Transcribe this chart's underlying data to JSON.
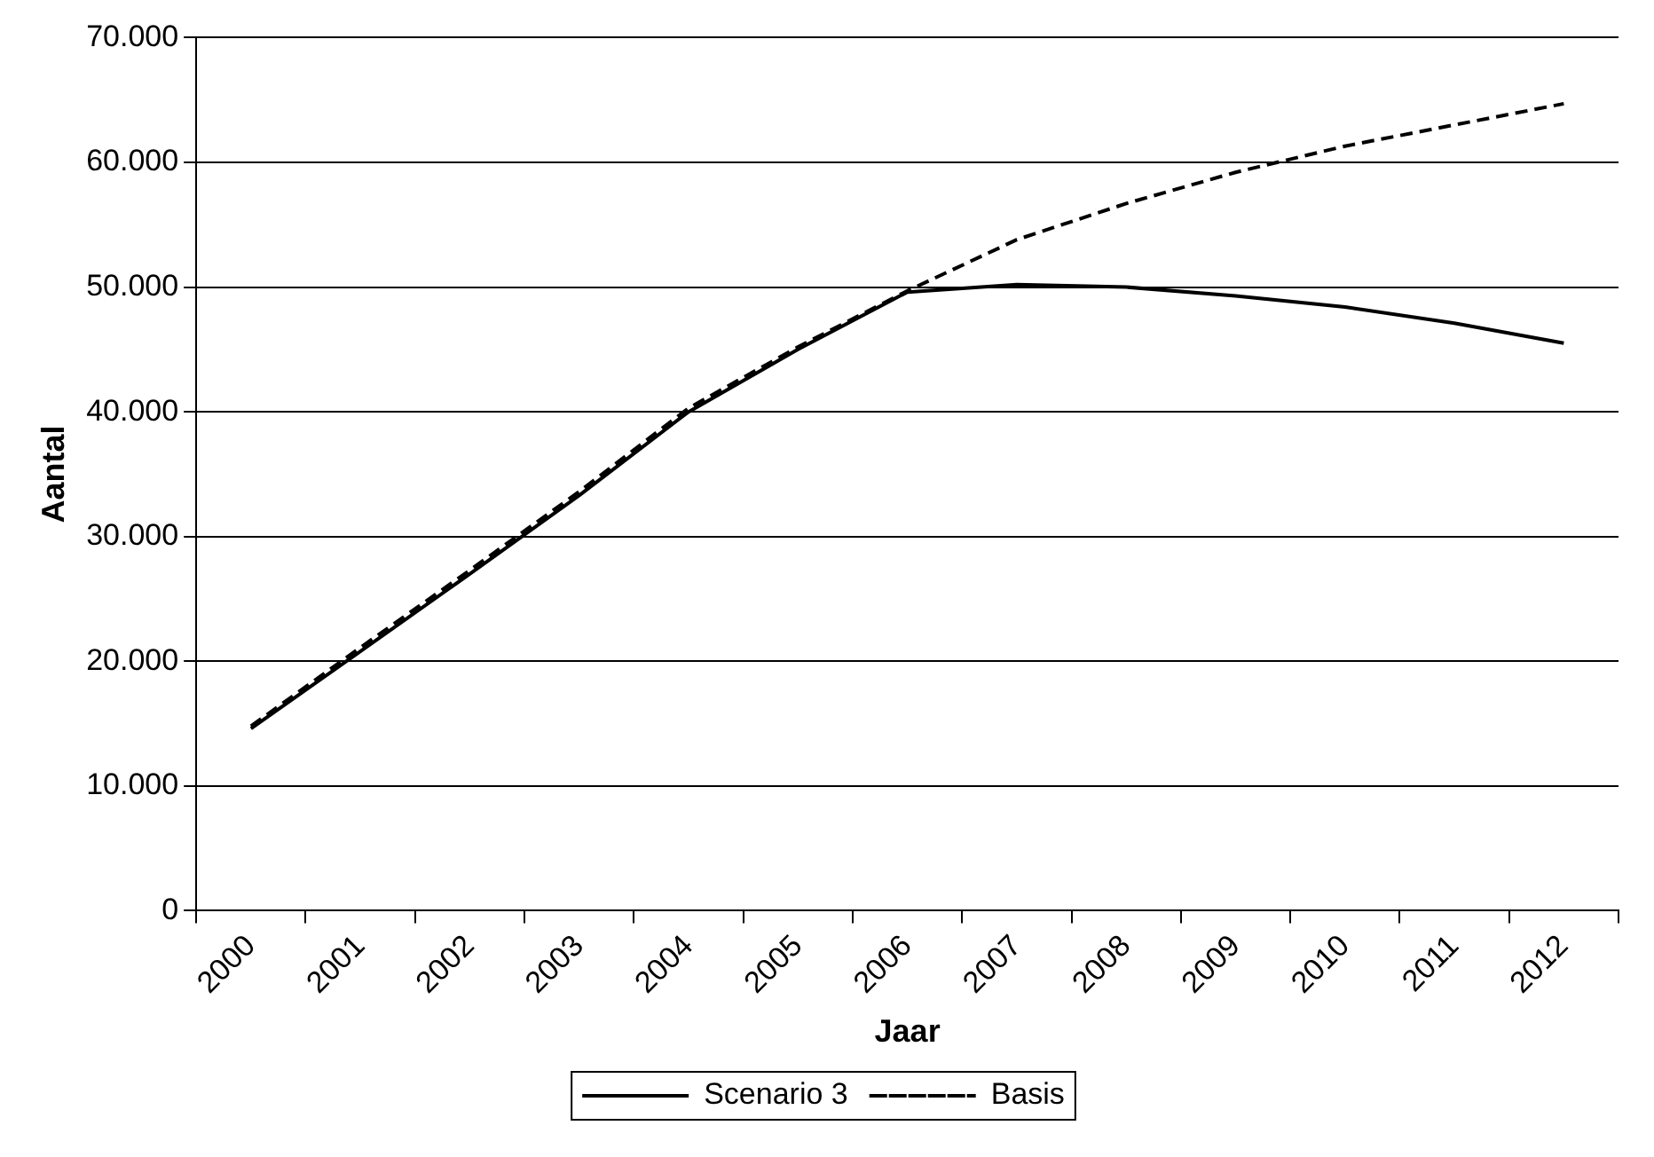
{
  "chart_data": {
    "type": "line",
    "xlabel": "Jaar",
    "ylabel": "Aantal",
    "categories": [
      "2000",
      "2001",
      "2002",
      "2003",
      "2004",
      "2005",
      "2006",
      "2007",
      "2008",
      "2009",
      "2010",
      "2011",
      "2012"
    ],
    "series": [
      {
        "name": "Scenario 3",
        "color": "#000000",
        "line_style": "solid",
        "values": [
          14600,
          20800,
          27000,
          33300,
          40000,
          45000,
          49600,
          50200,
          50000,
          49300,
          48400,
          47100,
          45500
        ]
      },
      {
        "name": "Basis",
        "color": "#000000",
        "line_style": "dashed",
        "values": [
          14800,
          21100,
          27300,
          33600,
          40300,
          45200,
          49700,
          53800,
          56700,
          59200,
          61300,
          63000,
          64700
        ]
      }
    ],
    "ylim": [
      0,
      70000
    ],
    "yticks": [
      {
        "value": 0,
        "label": "0"
      },
      {
        "value": 10000,
        "label": "10.000"
      },
      {
        "value": 20000,
        "label": "20.000"
      },
      {
        "value": 30000,
        "label": "30.000"
      },
      {
        "value": 40000,
        "label": "40.000"
      },
      {
        "value": 50000,
        "label": "50.000"
      },
      {
        "value": 60000,
        "label": "60.000"
      },
      {
        "value": 70000,
        "label": "70.000"
      }
    ],
    "grid": "y",
    "legend": "bottom",
    "marker": "none"
  }
}
